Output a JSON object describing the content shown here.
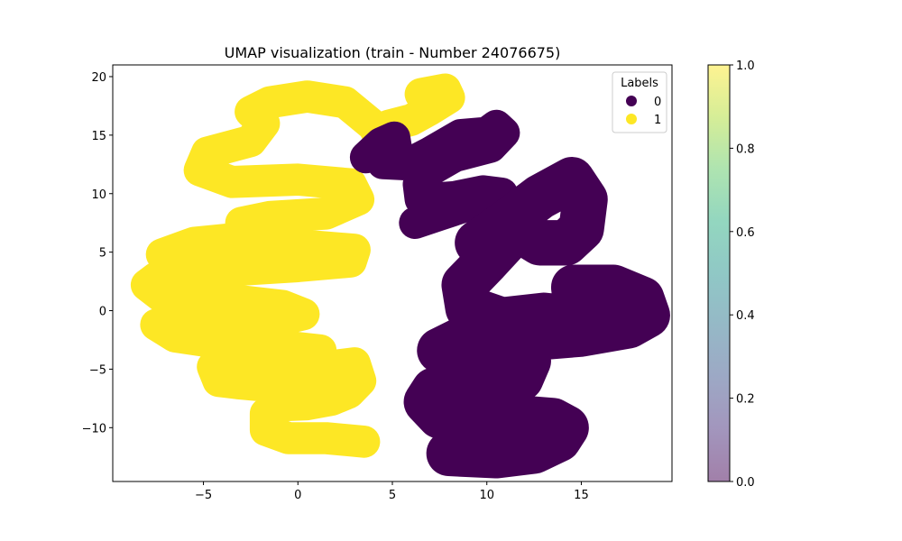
{
  "chart_data": {
    "type": "scatter",
    "title": "UMAP visualization (train - Number 24076675)",
    "xlabel": "",
    "ylabel": "",
    "xlim": [
      -9.8,
      19.8
    ],
    "ylim": [
      -14.6,
      21.0
    ],
    "xticks": [
      -5,
      0,
      5,
      10,
      15
    ],
    "yticks": [
      -10,
      -5,
      0,
      5,
      10,
      15,
      20
    ],
    "grid": false,
    "legend": {
      "title": "Labels",
      "placement": "top-right",
      "entries": [
        {
          "label": "0",
          "color": "#440154"
        },
        {
          "label": "1",
          "color": "#fde725"
        }
      ]
    },
    "colorbar": {
      "range": [
        0.0,
        1.0
      ],
      "ticks": [
        "0.0",
        "0.2",
        "0.4",
        "0.6",
        "0.8",
        "1.0"
      ],
      "colormap": "viridis",
      "alpha": 0.5
    },
    "series": [
      {
        "name": "1",
        "color": "#fde725",
        "width": 1.7,
        "points": [
          [
            6.5,
            18.5
          ],
          [
            7.8,
            18.9
          ],
          [
            8,
            18.2
          ],
          [
            7,
            17.2
          ],
          [
            6,
            16.3
          ],
          [
            4.8,
            15.8
          ],
          [
            4.2,
            15.2
          ],
          [
            4.0,
            15.8
          ],
          [
            2.5,
            17.8
          ],
          [
            0.5,
            18.3
          ],
          [
            -1.5,
            17.8
          ],
          [
            -2.5,
            17.0
          ],
          [
            -1.8,
            16.0
          ],
          [
            -2.5,
            14.5
          ],
          [
            -4.8,
            13.5
          ],
          [
            -5.2,
            12.0
          ],
          [
            -3.5,
            11.0
          ],
          [
            0,
            11.2
          ],
          [
            2.8,
            10.8
          ],
          [
            3.2,
            9.5
          ],
          [
            1.5,
            8.3
          ],
          [
            -1.5,
            8.0
          ],
          [
            -3.0,
            7.5
          ],
          [
            -3.0,
            6.2
          ],
          [
            -5.5,
            5.8
          ],
          [
            -7.2,
            4.8
          ],
          [
            -6,
            4.5
          ],
          [
            -3,
            5.0
          ],
          [
            0,
            5.6
          ],
          [
            3.0,
            5.2
          ],
          [
            2.8,
            4.2
          ],
          [
            0.0,
            3.8
          ],
          [
            -3.0,
            3.5
          ],
          [
            -6.2,
            3.4
          ],
          [
            -7.5,
            2.8
          ],
          [
            -8,
            2.2
          ],
          [
            -7.2,
            1.2
          ],
          [
            -5.5,
            1.0
          ],
          [
            -3.0,
            0.8
          ],
          [
            -0.8,
            0.4
          ],
          [
            0.3,
            -0.3
          ],
          [
            -1.0,
            -0.8
          ],
          [
            -3,
            -1.1
          ],
          [
            -5.5,
            -1.3
          ],
          [
            -7.5,
            -1.2
          ],
          [
            -6.5,
            -2.2
          ],
          [
            -4,
            -2.8
          ],
          [
            -0.5,
            -3.1
          ],
          [
            1.2,
            -3.4
          ],
          [
            0.0,
            -4.4
          ],
          [
            -2.5,
            -4.6
          ],
          [
            -4.5,
            -4.8
          ],
          [
            -4.2,
            -6.0
          ],
          [
            -3.2,
            -6.2
          ],
          [
            -0.5,
            -6.6
          ],
          [
            0.3,
            -6.0
          ],
          [
            1.5,
            -4.8
          ],
          [
            3.0,
            -4.5
          ],
          [
            3.3,
            -6.0
          ],
          [
            2.7,
            -7.0
          ],
          [
            1.8,
            -7.6
          ],
          [
            0.5,
            -8.0
          ],
          [
            -1.0,
            -8.1
          ],
          [
            -1.7,
            -8.8
          ],
          [
            -1.7,
            -10.2
          ],
          [
            -0.5,
            -10.9
          ],
          [
            1.5,
            -10.9
          ],
          [
            3.5,
            -11.2
          ]
        ]
      },
      {
        "name": "0",
        "color": "#440154",
        "width": 1.7,
        "points": [
          [
            3.6,
            13.1
          ],
          [
            4.4,
            14.3
          ],
          [
            5.1,
            14.8
          ],
          [
            5.2,
            13.8
          ],
          [
            4.5,
            12.6
          ],
          [
            5.8,
            12.5
          ],
          [
            7.0,
            13.5
          ],
          [
            8.6,
            15.0
          ],
          [
            10,
            15.2
          ],
          [
            10.5,
            15.8
          ],
          [
            10.9,
            15.2
          ],
          [
            10.2,
            14.0
          ],
          [
            8.3,
            13.2
          ],
          [
            7.0,
            12.0
          ],
          [
            6.4,
            10.8
          ],
          [
            6.5,
            9.5
          ],
          [
            8.3,
            9.7
          ],
          [
            9.8,
            10.2
          ],
          [
            10.8,
            10.0
          ],
          [
            9.0,
            9.0
          ],
          [
            7.5,
            8.2
          ],
          [
            6.2,
            7.5
          ]
        ]
      },
      {
        "name": "0",
        "color": "#440154",
        "width": 2.4,
        "points": [
          [
            9.5,
            5.8
          ],
          [
            11.0,
            7.5
          ],
          [
            12.8,
            9.7
          ],
          [
            14.5,
            11.2
          ],
          [
            15.2,
            9.5
          ],
          [
            15.0,
            7.0
          ],
          [
            14.2,
            5.8
          ],
          [
            12.8,
            5.8
          ],
          [
            11.6,
            7.0
          ],
          [
            10.0,
            4.2
          ],
          [
            8.8,
            2.2
          ],
          [
            9.0,
            0.2
          ],
          [
            10.8,
            -0.8
          ],
          [
            13.0,
            -0.4
          ],
          [
            14.8,
            -0.7
          ],
          [
            14.6,
            2.0
          ],
          [
            16.7,
            2.0
          ],
          [
            18.2,
            1.0
          ],
          [
            18.5,
            -0.4
          ],
          [
            17.5,
            -1.3
          ],
          [
            15.0,
            -2.0
          ],
          [
            12.0,
            -2.4
          ],
          [
            8.5,
            -2.6
          ],
          [
            7.5,
            -3.4
          ],
          [
            9.0,
            -4.5
          ],
          [
            11.0,
            -4.0
          ],
          [
            12.2,
            -4.3
          ],
          [
            11.8,
            -5.8
          ],
          [
            9.0,
            -6.1
          ],
          [
            7.2,
            -6.8
          ],
          [
            6.8,
            -7.8
          ],
          [
            7.5,
            -9.0
          ],
          [
            9.8,
            -9.2
          ],
          [
            12,
            -9.2
          ],
          [
            13.5,
            -9.4
          ],
          [
            14.2,
            -10.0
          ],
          [
            13.8,
            -11.0
          ],
          [
            12.5,
            -12.0
          ],
          [
            10.5,
            -12.4
          ],
          [
            8.0,
            -12.2
          ]
        ]
      }
    ]
  }
}
